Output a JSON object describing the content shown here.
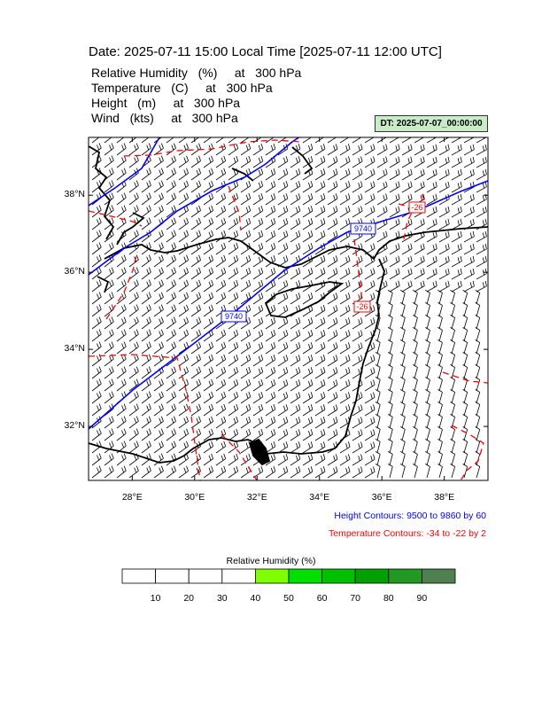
{
  "header": {
    "title": "Date: 2025-07-11  15:00 Local Time [2025-07-11  12:00 UTC]",
    "lines": [
      "Relative Humidity   (%)     at   300 hPa",
      "Temperature   (C)     at   300 hPa",
      "Height   (m)     at   300 hPa",
      "Wind   (kts)     at   300 hPa"
    ],
    "dt_badge": "DT: 2025-07-07_00:00:00"
  },
  "map": {
    "lat_labels": [
      "38°N",
      "36°N",
      "34°N",
      "32°N"
    ],
    "lon_labels": [
      "28°E",
      "30°E",
      "32°E",
      "34°E",
      "36°E",
      "38°E"
    ],
    "lat_ticks": [
      38,
      36,
      34,
      32
    ],
    "lon_ticks": [
      28,
      30,
      32,
      34,
      36,
      38
    ],
    "extent": {
      "lon_min": 26.6,
      "lon_max": 39.4,
      "lat_min": 30.6,
      "lat_max": 39.5
    },
    "contour_labels": {
      "height_1": "9740",
      "height_2": "9740",
      "temp_1": "-26",
      "temp_2": "-26"
    },
    "colors": {
      "height": "#0000ff",
      "temperature": "#ff0000",
      "coast": "#000000"
    }
  },
  "legend": {
    "height_contours": "Height Contours: 9500 to 9860 by 60",
    "temp_contours": "Temperature Contours: -34 to -22 by 2"
  },
  "colorbar": {
    "title": "Relative Humidity  (%)",
    "labels": [
      "10",
      "20",
      "30",
      "40",
      "50",
      "60",
      "70",
      "80",
      "90"
    ],
    "colors": [
      "#ffffff",
      "#ffffff",
      "#ffffff",
      "#ffffff",
      "#80ff00",
      "#00e000",
      "#00c000",
      "#00a000",
      "#229922",
      "#508050"
    ]
  }
}
